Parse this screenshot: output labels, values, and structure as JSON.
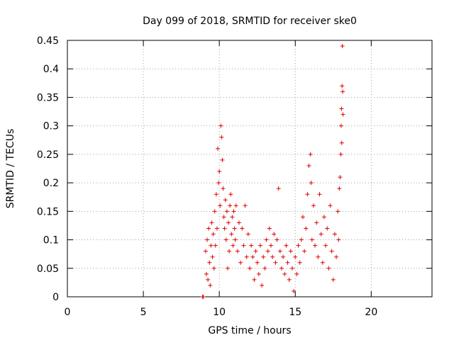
{
  "chart_data": {
    "type": "scatter",
    "title": "Day 099 of 2018, SRMTID for receiver ske0",
    "xlabel": "GPS time / hours",
    "ylabel": "SRMTID / TECUs",
    "xlim": [
      0,
      24
    ],
    "ylim": [
      0,
      0.45
    ],
    "xticks": [
      "0",
      "5",
      "10",
      "15",
      "20"
    ],
    "yticks": [
      "0",
      "0.05",
      "0.1",
      "0.15",
      "0.2",
      "0.25",
      "0.3",
      "0.35",
      "0.4",
      "0.45"
    ],
    "grid": true,
    "marker": "plus",
    "color": "#e00000",
    "series": [
      {
        "name": "SRMTID",
        "points": [
          [
            8.9,
            0.0
          ],
          [
            8.95,
            0.0
          ],
          [
            9.1,
            0.08
          ],
          [
            9.15,
            0.04
          ],
          [
            9.2,
            0.1
          ],
          [
            9.25,
            0.03
          ],
          [
            9.3,
            0.12
          ],
          [
            9.35,
            0.06
          ],
          [
            9.4,
            0.02
          ],
          [
            9.45,
            0.09
          ],
          [
            9.5,
            0.13
          ],
          [
            9.55,
            0.07
          ],
          [
            9.6,
            0.11
          ],
          [
            9.65,
            0.05
          ],
          [
            9.7,
            0.15
          ],
          [
            9.75,
            0.09
          ],
          [
            9.8,
            0.18
          ],
          [
            9.85,
            0.12
          ],
          [
            9.9,
            0.26
          ],
          [
            9.95,
            0.2
          ],
          [
            10.0,
            0.22
          ],
          [
            10.05,
            0.16
          ],
          [
            10.1,
            0.3
          ],
          [
            10.15,
            0.28
          ],
          [
            10.2,
            0.24
          ],
          [
            10.25,
            0.19
          ],
          [
            10.3,
            0.14
          ],
          [
            10.35,
            0.12
          ],
          [
            10.4,
            0.17
          ],
          [
            10.45,
            0.1
          ],
          [
            10.5,
            0.15
          ],
          [
            10.55,
            0.05
          ],
          [
            10.6,
            0.13
          ],
          [
            10.65,
            0.08
          ],
          [
            10.7,
            0.16
          ],
          [
            10.75,
            0.18
          ],
          [
            10.8,
            0.11
          ],
          [
            10.85,
            0.14
          ],
          [
            10.9,
            0.09
          ],
          [
            10.95,
            0.15
          ],
          [
            11.0,
            0.12
          ],
          [
            11.05,
            0.1
          ],
          [
            11.1,
            0.16
          ],
          [
            11.2,
            0.08
          ],
          [
            11.3,
            0.13
          ],
          [
            11.4,
            0.06
          ],
          [
            11.5,
            0.12
          ],
          [
            11.6,
            0.09
          ],
          [
            11.7,
            0.16
          ],
          [
            11.8,
            0.07
          ],
          [
            11.9,
            0.11
          ],
          [
            12.0,
            0.05
          ],
          [
            12.1,
            0.09
          ],
          [
            12.2,
            0.07
          ],
          [
            12.3,
            0.03
          ],
          [
            12.4,
            0.08
          ],
          [
            12.5,
            0.06
          ],
          [
            12.6,
            0.04
          ],
          [
            12.7,
            0.09
          ],
          [
            12.8,
            0.02
          ],
          [
            12.9,
            0.07
          ],
          [
            13.0,
            0.05
          ],
          [
            13.1,
            0.1
          ],
          [
            13.2,
            0.08
          ],
          [
            13.3,
            0.12
          ],
          [
            13.4,
            0.09
          ],
          [
            13.5,
            0.07
          ],
          [
            13.6,
            0.11
          ],
          [
            13.7,
            0.06
          ],
          [
            13.8,
            0.1
          ],
          [
            13.9,
            0.19
          ],
          [
            14.0,
            0.08
          ],
          [
            14.1,
            0.05
          ],
          [
            14.2,
            0.07
          ],
          [
            14.3,
            0.04
          ],
          [
            14.4,
            0.09
          ],
          [
            14.5,
            0.06
          ],
          [
            14.6,
            0.03
          ],
          [
            14.7,
            0.08
          ],
          [
            14.8,
            0.05
          ],
          [
            14.9,
            0.01
          ],
          [
            15.0,
            0.07
          ],
          [
            15.1,
            0.04
          ],
          [
            15.2,
            0.09
          ],
          [
            15.3,
            0.06
          ],
          [
            15.4,
            0.1
          ],
          [
            15.5,
            0.14
          ],
          [
            15.6,
            0.08
          ],
          [
            15.7,
            0.12
          ],
          [
            15.8,
            0.18
          ],
          [
            15.9,
            0.23
          ],
          [
            16.0,
            0.25
          ],
          [
            16.05,
            0.2
          ],
          [
            16.1,
            0.1
          ],
          [
            16.2,
            0.16
          ],
          [
            16.3,
            0.09
          ],
          [
            16.4,
            0.13
          ],
          [
            16.5,
            0.07
          ],
          [
            16.6,
            0.18
          ],
          [
            16.7,
            0.11
          ],
          [
            16.8,
            0.06
          ],
          [
            16.9,
            0.14
          ],
          [
            17.0,
            0.09
          ],
          [
            17.1,
            0.12
          ],
          [
            17.2,
            0.05
          ],
          [
            17.3,
            0.16
          ],
          [
            17.4,
            0.08
          ],
          [
            17.5,
            0.03
          ],
          [
            17.6,
            0.11
          ],
          [
            17.7,
            0.07
          ],
          [
            17.8,
            0.15
          ],
          [
            17.85,
            0.1
          ],
          [
            17.9,
            0.19
          ],
          [
            17.95,
            0.21
          ],
          [
            18.0,
            0.25
          ],
          [
            18.02,
            0.3
          ],
          [
            18.04,
            0.33
          ],
          [
            18.06,
            0.27
          ],
          [
            18.08,
            0.37
          ],
          [
            18.1,
            0.44
          ],
          [
            18.12,
            0.36
          ],
          [
            18.14,
            0.32
          ]
        ]
      }
    ]
  }
}
